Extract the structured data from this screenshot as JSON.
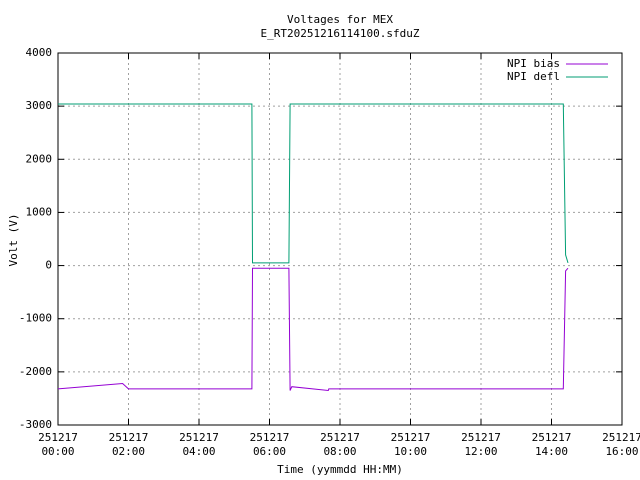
{
  "chart_data": {
    "type": "line",
    "title": "Voltages for MEX",
    "subtitle": "E_RT20251216114100.sfduZ",
    "x_label": "Time (yymmdd HH:MM)",
    "y_label": "Volt (V)",
    "x": [
      "251217 00:00",
      "251217 01:50",
      "251217 02:00",
      "251217 05:30",
      "251217 05:31",
      "251217 06:33",
      "251217 06:35",
      "251217 06:38",
      "251217 07:40",
      "251217 07:41",
      "251217 10:00",
      "251217 14:20",
      "251217 14:24",
      "251217 14:28"
    ],
    "series": [
      {
        "name": "NPI bias",
        "color": "#9400d3",
        "values": [
          -2320,
          -2220,
          -2320,
          -2320,
          -50,
          -50,
          -2350,
          -2280,
          -2350,
          -2320,
          -2320,
          -2320,
          -100,
          -50
        ]
      },
      {
        "name": "NPI defl",
        "color": "#009e73",
        "values": [
          3040,
          3040,
          3040,
          3040,
          50,
          50,
          3040,
          3040,
          3040,
          3040,
          3040,
          3040,
          200,
          50
        ]
      }
    ],
    "xlim": [
      "251217 00:00",
      "251217 16:00"
    ],
    "ylim": [
      -3000,
      4000
    ],
    "xticks": [
      {
        "value": "251217 00:00",
        "label": [
          "251217",
          "00:00"
        ]
      },
      {
        "value": "251217 02:00",
        "label": [
          "251217",
          "02:00"
        ]
      },
      {
        "value": "251217 04:00",
        "label": [
          "251217",
          "04:00"
        ]
      },
      {
        "value": "251217 06:00",
        "label": [
          "251217",
          "06:00"
        ]
      },
      {
        "value": "251217 08:00",
        "label": [
          "251217",
          "08:00"
        ]
      },
      {
        "value": "251217 10:00",
        "label": [
          "251217",
          "10:00"
        ]
      },
      {
        "value": "251217 12:00",
        "label": [
          "251217",
          "12:00"
        ]
      },
      {
        "value": "251217 14:00",
        "label": [
          "251217",
          "14:00"
        ]
      },
      {
        "value": "251217 16:00",
        "label": [
          "251217",
          "16:00"
        ]
      }
    ],
    "yticks": [
      -3000,
      -2000,
      -1000,
      0,
      1000,
      2000,
      3000,
      4000
    ],
    "grid": true,
    "legend": "top-right"
  }
}
